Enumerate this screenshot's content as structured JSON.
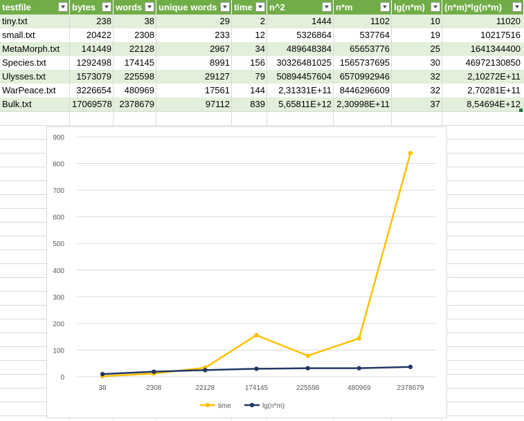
{
  "table": {
    "headers": [
      "testfile",
      "bytes",
      "words",
      "unique words",
      "time",
      "n^2",
      "n*m",
      "lg(n*m)",
      "(n*m)*lg(n*m)"
    ],
    "rows": [
      [
        "tiny.txt",
        "238",
        "38",
        "29",
        "2",
        "1444",
        "1102",
        "10",
        "11020"
      ],
      [
        "small.txt",
        "20422",
        "2308",
        "233",
        "12",
        "5326864",
        "537764",
        "19",
        "10217516"
      ],
      [
        "MetaMorph.txt",
        "141449",
        "22128",
        "2967",
        "34",
        "489648384",
        "65653776",
        "25",
        "1641344400"
      ],
      [
        "Species.txt",
        "1292498",
        "174145",
        "8991",
        "156",
        "30326481025",
        "1565737695",
        "30",
        "46972130850"
      ],
      [
        "Ulysses.txt",
        "1573079",
        "225598",
        "29127",
        "79",
        "50894457604",
        "6570992946",
        "32",
        "2,10272E+11"
      ],
      [
        "WarPeace.txt",
        "3226654",
        "480969",
        "17561",
        "144",
        "2,31331E+11",
        "8446296609",
        "32",
        "2,70281E+11"
      ],
      [
        "Bulk.txt",
        "17069578",
        "2378679",
        "97112",
        "839",
        "5,65811E+12",
        "2,30998E+11",
        "37",
        "8,54694E+12"
      ]
    ]
  },
  "chart_data": {
    "type": "line",
    "categories": [
      "38",
      "2308",
      "22128",
      "174145",
      "225598",
      "480969",
      "2378679"
    ],
    "series": [
      {
        "name": "time",
        "values": [
          2,
          12,
          34,
          156,
          79,
          144,
          839
        ],
        "color": "#ffc000"
      },
      {
        "name": "lg(n*m)",
        "values": [
          10,
          19,
          25,
          30,
          32,
          32,
          37
        ],
        "color": "#203864"
      }
    ],
    "yticks": [
      0,
      100,
      200,
      300,
      400,
      500,
      600,
      700,
      800,
      900
    ],
    "ylim": [
      0,
      900
    ],
    "grid": true,
    "legend": "bottom"
  }
}
